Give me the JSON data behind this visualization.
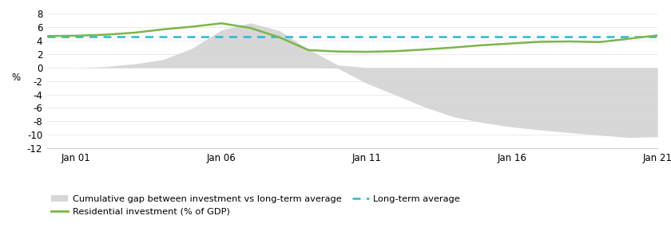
{
  "x_years": [
    2000,
    2001,
    2002,
    2003,
    2004,
    2005,
    2006,
    2007,
    2008,
    2009,
    2010,
    2011,
    2012,
    2013,
    2014,
    2015,
    2016,
    2017,
    2018,
    2019,
    2020,
    2021
  ],
  "residential_investment": [
    4.7,
    4.75,
    4.9,
    5.2,
    5.7,
    6.1,
    6.6,
    5.9,
    4.5,
    2.6,
    2.4,
    2.35,
    2.45,
    2.7,
    3.0,
    3.35,
    3.6,
    3.85,
    3.9,
    3.8,
    4.3,
    4.8
  ],
  "long_term_average": 4.6,
  "cumulative_gap_upper": [
    0.0,
    0.0,
    0.15,
    0.55,
    1.2,
    2.9,
    5.6,
    6.65,
    5.5,
    2.7,
    0.4,
    0.0,
    0.0,
    0.0,
    0.0,
    0.0,
    0.0,
    0.0,
    0.0,
    0.0,
    0.0,
    0.0
  ],
  "cumulative_gap_lower": [
    0.0,
    0.0,
    0.0,
    0.0,
    0.0,
    0.0,
    0.0,
    0.0,
    0.0,
    0.0,
    -0.1,
    -2.35,
    -4.1,
    -5.9,
    -7.35,
    -8.2,
    -8.85,
    -9.3,
    -9.7,
    -10.05,
    -10.4,
    -10.3
  ],
  "ylim": [
    -12,
    9
  ],
  "yticks": [
    -12,
    -10,
    -8,
    -6,
    -4,
    -2,
    0,
    2,
    4,
    6,
    8
  ],
  "x_tick_labels": [
    "Jan 01",
    "Jan 06",
    "Jan 11",
    "Jan 16",
    "Jan 21"
  ],
  "x_tick_positions": [
    2001,
    2006,
    2011,
    2016,
    2021
  ],
  "line_color": "#7ab648",
  "dashed_color": "#29b8d4",
  "fill_color": "#d0d0d0",
  "fill_alpha": 0.85,
  "background_color": "#ffffff",
  "ylabel": "%",
  "legend_gap_label": "Cumulative gap between investment vs long-term average",
  "legend_res_label": "Residential investment (% of GDP)",
  "legend_avg_label": "Long-term average"
}
